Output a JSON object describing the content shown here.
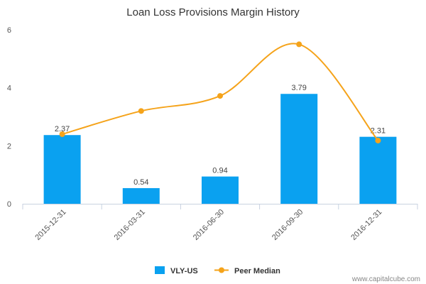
{
  "chart_data": {
    "type": "bar",
    "title": "Loan Loss Provisions Margin History",
    "categories": [
      "2015-12-31",
      "2016-03-31",
      "2016-06-30",
      "2016-09-30",
      "2016-12-31"
    ],
    "ylim": [
      0,
      6
    ],
    "yticks": [
      0,
      2,
      4,
      6
    ],
    "grid": false,
    "legend_position": "bottom",
    "series": [
      {
        "name": "VLY-US",
        "type": "bar",
        "color": "#0aa1f0",
        "values": [
          2.37,
          0.54,
          0.94,
          3.79,
          2.31
        ],
        "labels": [
          "2.37",
          "0.54",
          "0.94",
          "3.79",
          "2.31"
        ]
      },
      {
        "name": "Peer Median",
        "type": "line",
        "smooth": true,
        "color": "#f5a31a",
        "values": [
          2.4,
          3.2,
          3.72,
          5.5,
          2.18
        ]
      }
    ]
  },
  "credit": "www.capitalcube.com"
}
